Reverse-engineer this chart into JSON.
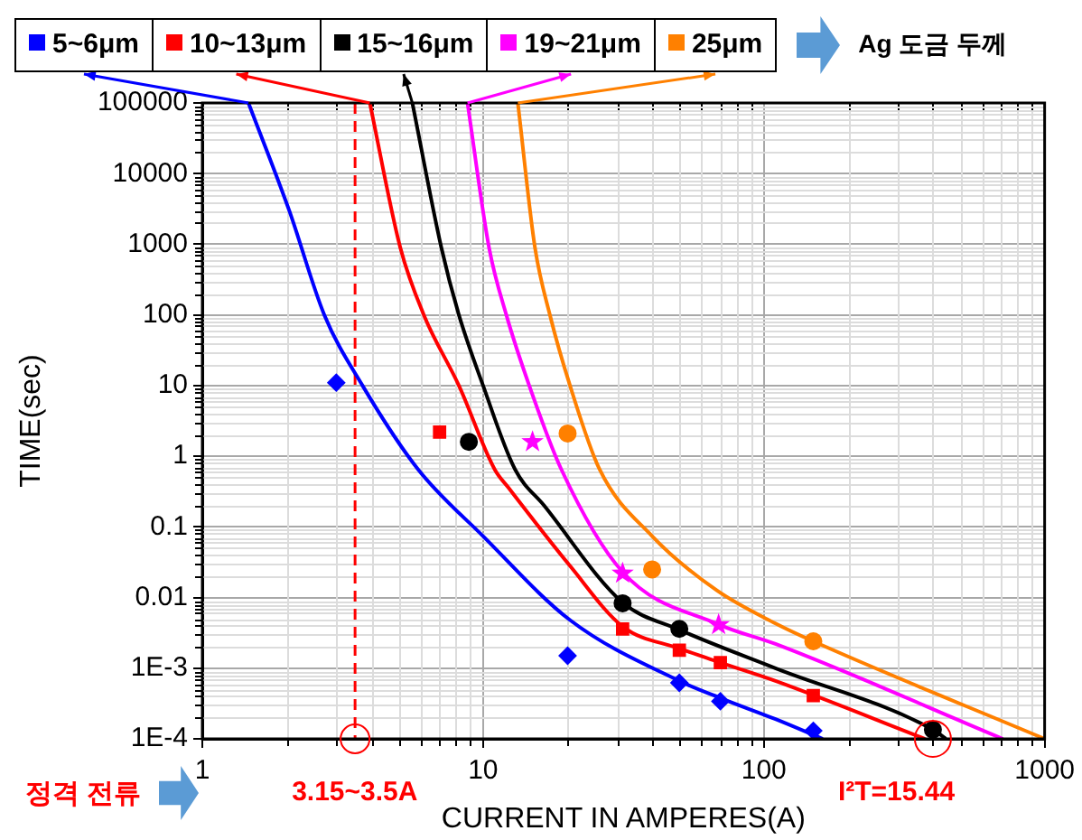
{
  "chart_data": {
    "type": "line",
    "xlabel": "CURRENT IN AMPERES(A)",
    "ylabel": "TIME(sec)",
    "legend_title": "Ag 도금 두께",
    "legend": "top",
    "log": "xy",
    "grid": true,
    "xlim": [
      1,
      1000
    ],
    "xticks": [
      1,
      10,
      100,
      1000
    ],
    "ylim": [
      0.0001,
      100000
    ],
    "yticks": [
      {
        "value": 0.0001,
        "label": "1E-4"
      },
      {
        "value": 0.001,
        "label": "1E-3"
      },
      0.01,
      0.1,
      1,
      10,
      100,
      1000,
      10000,
      100000
    ],
    "series": [
      {
        "name": "5~6μm",
        "marker": "none",
        "color": "#0000ff",
        "x": [
          1.46,
          2.04,
          2.72,
          3.72,
          5.87,
          10,
          20.4,
          50,
          71,
          110,
          162
        ],
        "values": [
          100000,
          3000,
          100,
          10,
          0.65,
          0.074,
          0.0048,
          0.00066,
          0.00037,
          0.00019,
          0.0001
        ]
      },
      {
        "name": "10~13μm",
        "marker": "none",
        "color": "#ff0000",
        "x": [
          3.95,
          5.07,
          6.15,
          8.2,
          11,
          12.3,
          20.4,
          31.4,
          50,
          70,
          110,
          375
        ],
        "values": [
          100000,
          900,
          100,
          10,
          0.65,
          0.36,
          0.028,
          0.0039,
          0.0019,
          0.0012,
          0.00066,
          0.0001
        ]
      },
      {
        "name": "15~16μm",
        "marker": "none",
        "color": "#000000",
        "x": [
          5.6,
          7.1,
          8.2,
          10,
          13,
          16.5,
          31.4,
          50,
          110,
          400,
          445
        ],
        "values": [
          100000,
          900,
          100,
          10,
          0.65,
          0.2,
          0.0085,
          0.0035,
          0.001,
          0.000135,
          0.0001
        ]
      },
      {
        "name": "19~21μm",
        "marker": "none",
        "color": "#ff00ff",
        "x": [
          8.8,
          10.5,
          12.1,
          14.6,
          19,
          31.4,
          69.7,
          110,
          710
        ],
        "values": [
          100000,
          900,
          100,
          10,
          0.65,
          0.023,
          0.0041,
          0.0022,
          0.0001
        ]
      },
      {
        "name": "25μm",
        "marker": "none",
        "color": "#ff8000",
        "x": [
          13.3,
          15.3,
          17.3,
          20.4,
          26,
          40,
          68,
          110,
          150,
          1000
        ],
        "values": [
          100000,
          900,
          100,
          10,
          0.65,
          0.074,
          0.0126,
          0.0043,
          0.0024,
          0.0001
        ]
      },
      {
        "type": "scatter",
        "marker": "diamond",
        "color": "#0000ff",
        "x": [
          3,
          20,
          50,
          70,
          150
        ],
        "values": [
          11,
          0.0015,
          0.00062,
          0.00034,
          0.00013
        ]
      },
      {
        "type": "scatter",
        "marker": "square",
        "color": "#ff0000",
        "x": [
          7,
          31.4,
          50,
          70,
          150
        ],
        "values": [
          2.2,
          0.0036,
          0.0018,
          0.0012,
          0.00041
        ]
      },
      {
        "type": "scatter",
        "marker": "circle",
        "color": "#000000",
        "x": [
          8.9,
          31.4,
          50,
          400
        ],
        "values": [
          1.6,
          0.0083,
          0.0036,
          0.000135
        ]
      },
      {
        "type": "scatter",
        "marker": "star",
        "color": "#ff00ff",
        "x": [
          15,
          31.4,
          69
        ],
        "values": [
          1.6,
          0.022,
          0.0041
        ]
      },
      {
        "type": "scatter",
        "marker": "circle",
        "color": "#ff8000",
        "x": [
          20,
          40,
          150
        ],
        "values": [
          2.1,
          0.025,
          0.0024
        ]
      }
    ],
    "ref_lines": [
      {
        "axis": "x",
        "value": 3.5,
        "label": "3.15~3.5A",
        "color": "#ff0000",
        "line_style": "dashed"
      }
    ],
    "annotations": [
      "정격 전류",
      {
        "text": "I²T=15.44",
        "x": 400,
        "y": 0.0001
      }
    ]
  }
}
